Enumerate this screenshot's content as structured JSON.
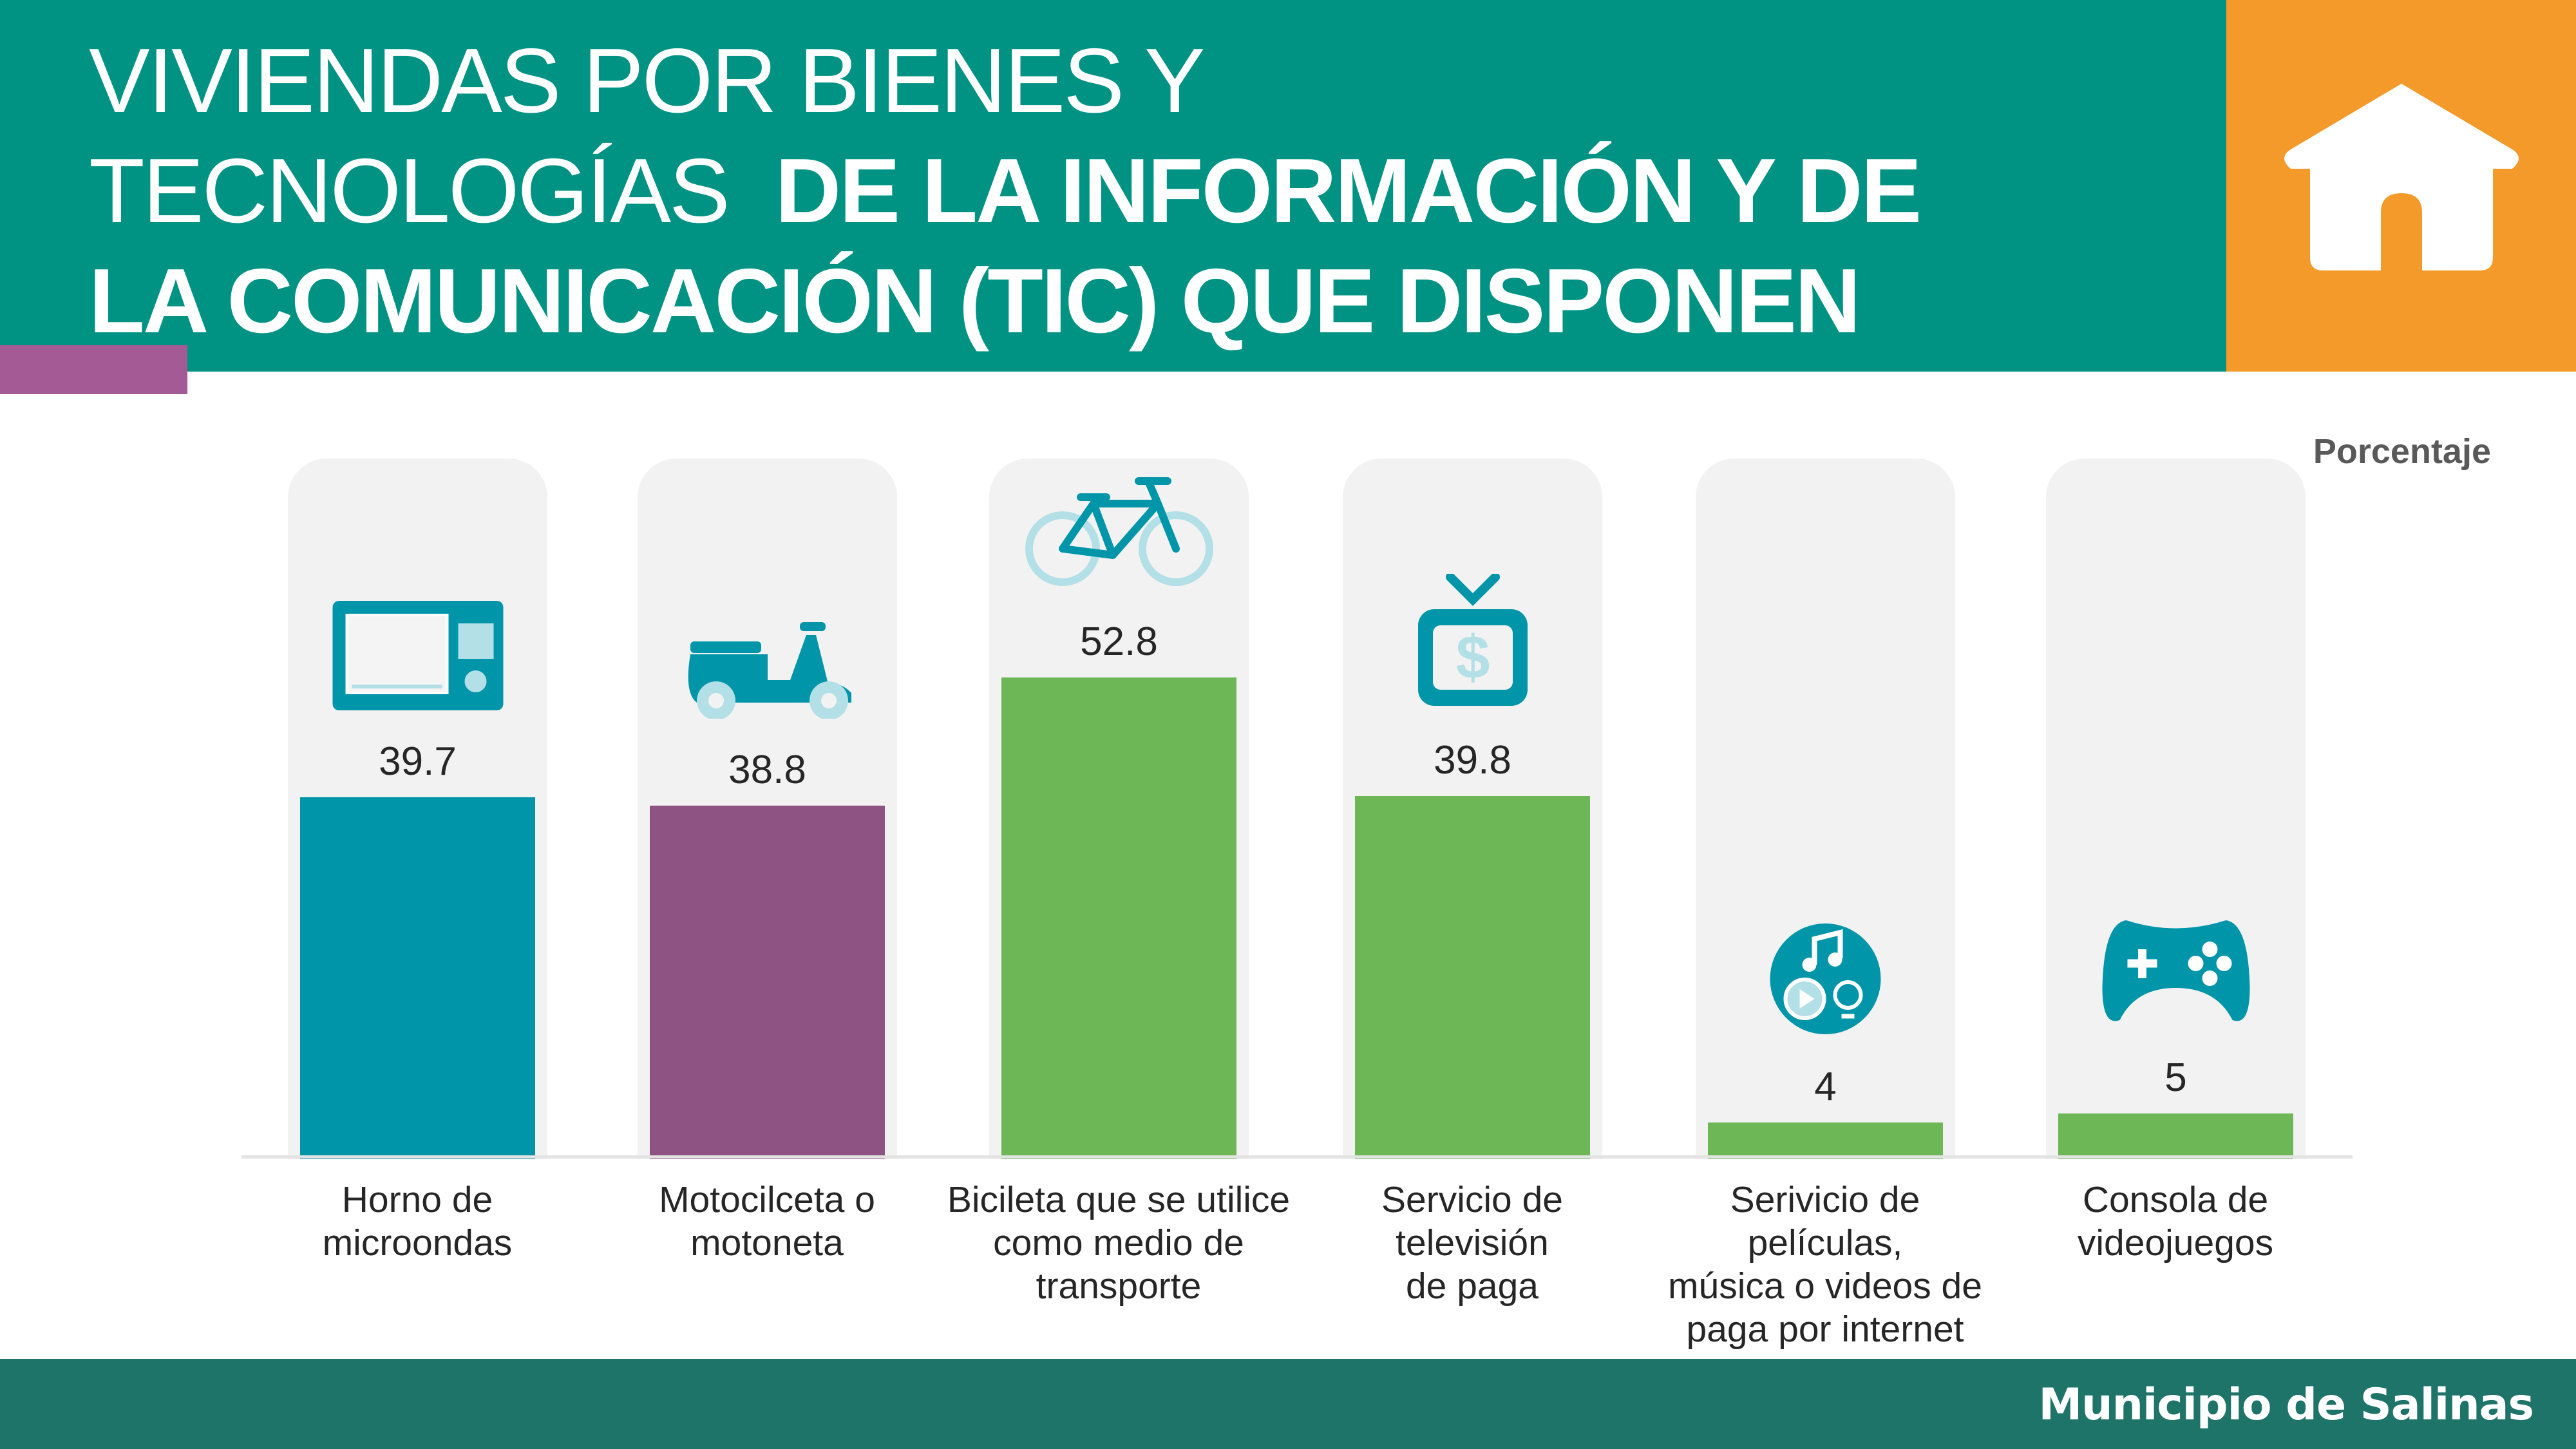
{
  "header": {
    "title_line1": "VIVIENDAS POR BIENES Y",
    "title_line2_regular": "TECNOLOGÍAS",
    "title_line2_bold": "DE LA INFORMACIÓN Y DE",
    "title_line3": "LA COMUNICACIÓN  (TIC) QUE DISPONEN",
    "icon": "house-icon",
    "colors": {
      "header": "#009383",
      "accent": "#F39A2B",
      "strip": "#A45A95"
    }
  },
  "chart_data": {
    "type": "bar",
    "unit_label": "Porcentaje",
    "categories": [
      [
        "Horno de",
        "microondas"
      ],
      [
        "Motocilceta o",
        "motoneta"
      ],
      [
        "Bicileta que se utilice",
        "como medio de",
        "transporte"
      ],
      [
        "Servicio de",
        "televisión",
        "de paga"
      ],
      [
        "Serivicio de",
        "películas,",
        "música o videos de",
        "paga por internet"
      ],
      [
        "Consola de",
        "videojuegos"
      ]
    ],
    "values": [
      39.7,
      38.8,
      52.8,
      39.8,
      4,
      5
    ],
    "value_labels": [
      "39.7",
      "38.8",
      "52.8",
      "39.8",
      "4",
      "5"
    ],
    "colors": [
      "#0095A8",
      "#8E5283",
      "#6DB756",
      "#6DB756",
      "#6DB756",
      "#6DB756"
    ],
    "icons": [
      "microwave-icon",
      "scooter-icon",
      "bicycle-icon",
      "pay-tv-icon",
      "streaming-icon",
      "gamepad-icon"
    ],
    "ylim": [
      0,
      60
    ],
    "grid": false
  },
  "footer": {
    "text": "Municipio de Salinas"
  }
}
